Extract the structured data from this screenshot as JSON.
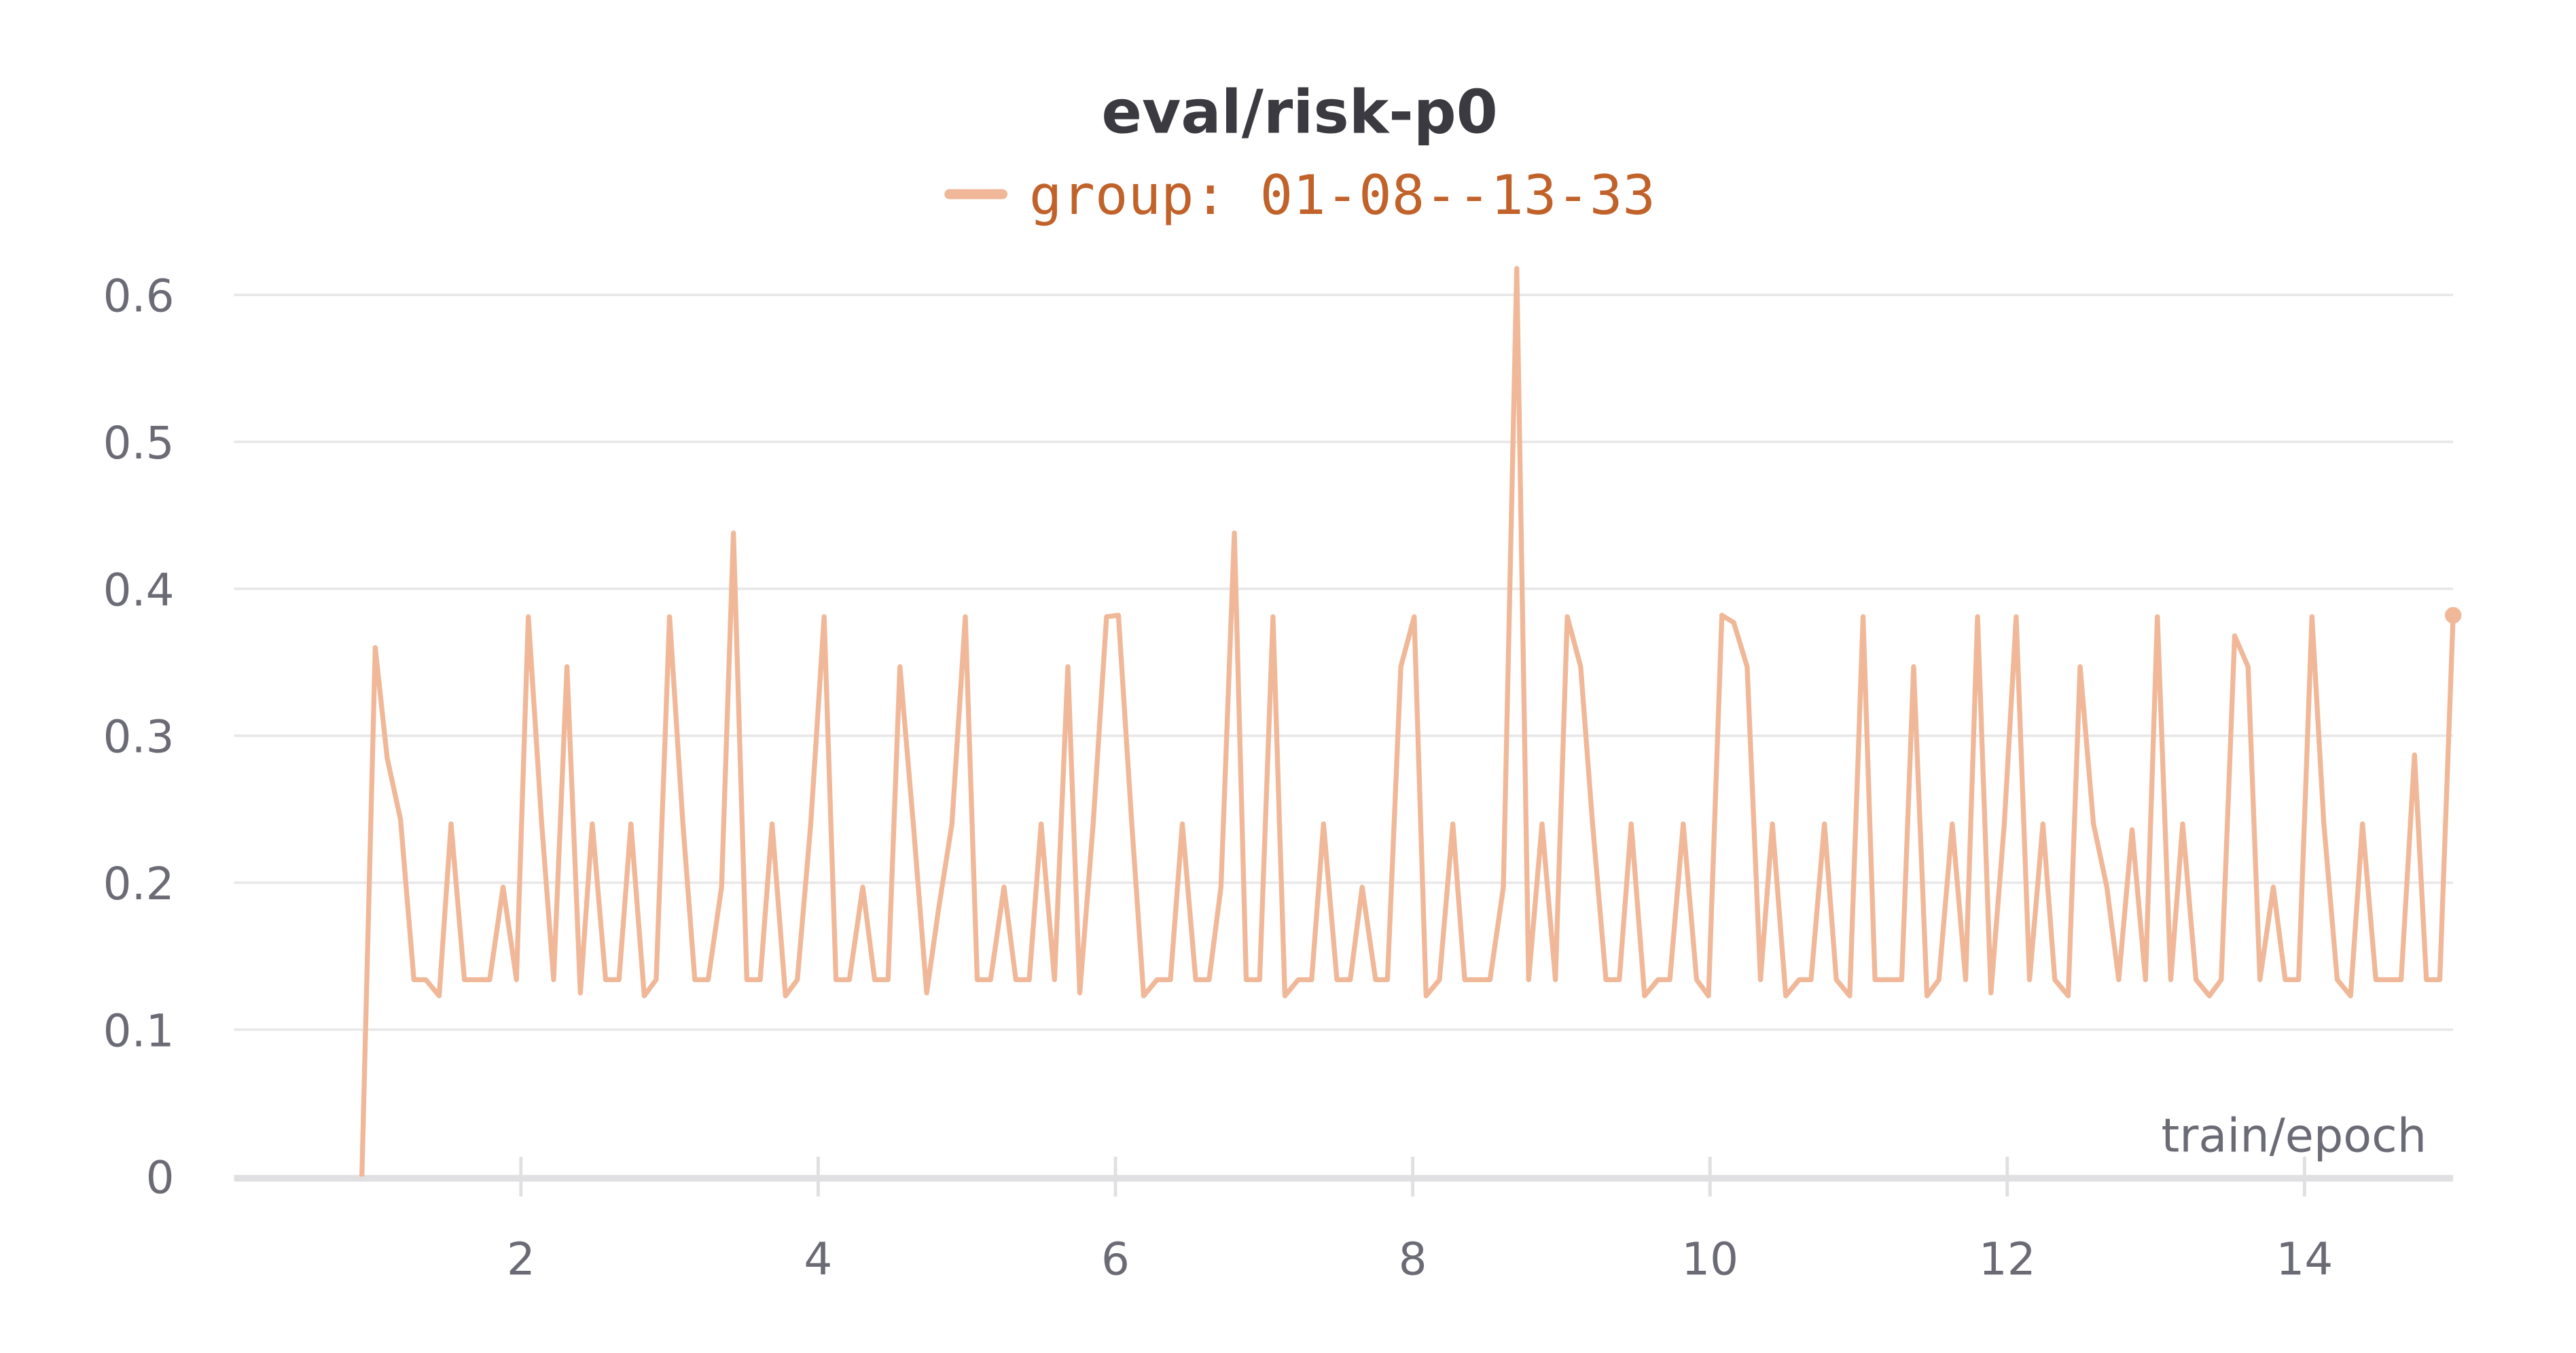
{
  "chart_data": {
    "type": "line",
    "title": "eval/risk-p0",
    "xlabel": "train/epoch",
    "x": [
      0.93,
      1.02,
      1.1,
      1.19,
      1.28,
      1.36,
      1.45,
      1.53,
      1.62,
      1.71,
      1.79,
      1.88,
      1.97,
      2.05,
      2.14,
      2.22,
      2.31,
      2.4,
      2.48,
      2.57,
      2.66,
      2.74,
      2.83,
      2.91,
      3.0,
      3.09,
      3.17,
      3.26,
      3.35,
      3.43,
      3.52,
      3.61,
      3.69,
      3.78,
      3.86,
      3.95,
      4.04,
      4.12,
      4.21,
      4.3,
      4.38,
      4.47,
      4.55,
      4.64,
      4.73,
      4.81,
      4.9,
      4.99,
      5.07,
      5.16,
      5.25,
      5.33,
      5.42,
      5.5,
      5.59,
      5.68,
      5.76,
      5.85,
      5.94,
      6.02,
      6.11,
      6.19,
      6.28,
      6.37,
      6.45,
      6.54,
      6.63,
      6.71,
      6.8,
      6.88,
      6.97,
      7.06,
      7.14,
      7.23,
      7.32,
      7.4,
      7.49,
      7.58,
      7.66,
      7.75,
      7.83,
      7.92,
      8.01,
      8.09,
      8.18,
      8.27,
      8.35,
      8.44,
      8.52,
      8.61,
      8.7,
      8.78,
      8.87,
      8.96,
      9.04,
      9.13,
      9.21,
      9.3,
      9.39,
      9.47,
      9.56,
      9.65,
      9.73,
      9.82,
      9.91,
      9.99,
      10.08,
      10.16,
      10.25,
      10.34,
      10.42,
      10.51,
      10.6,
      10.68,
      10.77,
      10.85,
      10.94,
      11.03,
      11.11,
      11.2,
      11.29,
      11.37,
      11.46,
      11.54,
      11.63,
      11.72,
      11.8,
      11.89,
      11.98,
      12.06,
      12.15,
      12.24,
      12.32,
      12.41,
      12.49,
      12.58,
      12.67,
      12.75,
      12.84,
      12.93,
      13.01,
      13.1,
      13.18,
      13.27,
      13.36,
      13.44,
      13.53,
      13.62,
      13.7,
      13.79,
      13.87,
      13.96,
      14.05,
      14.13,
      14.22,
      14.31,
      14.39,
      14.48,
      14.56,
      14.65,
      14.74,
      14.82,
      14.91,
      15.0
    ],
    "series": [
      {
        "name": "group: 01-08--13-33",
        "color": "#f0b898",
        "values": [
          0,
          0.36,
          0.285,
          0.243,
          0.134,
          0.134,
          0.123,
          0.24,
          0.134,
          0.134,
          0.134,
          0.197,
          0.134,
          0.381,
          0.24,
          0.134,
          0.347,
          0.125,
          0.24,
          0.134,
          0.134,
          0.24,
          0.123,
          0.134,
          0.381,
          0.24,
          0.134,
          0.134,
          0.197,
          0.438,
          0.134,
          0.134,
          0.24,
          0.123,
          0.134,
          0.24,
          0.381,
          0.134,
          0.134,
          0.197,
          0.134,
          0.134,
          0.347,
          0.24,
          0.125,
          0.182,
          0.24,
          0.381,
          0.134,
          0.134,
          0.197,
          0.134,
          0.134,
          0.24,
          0.134,
          0.347,
          0.125,
          0.24,
          0.381,
          0.382,
          0.24,
          0.123,
          0.134,
          0.134,
          0.24,
          0.134,
          0.134,
          0.197,
          0.438,
          0.134,
          0.134,
          0.381,
          0.123,
          0.134,
          0.134,
          0.24,
          0.134,
          0.134,
          0.197,
          0.134,
          0.134,
          0.347,
          0.381,
          0.123,
          0.134,
          0.24,
          0.134,
          0.134,
          0.134,
          0.197,
          0.618,
          0.134,
          0.24,
          0.134,
          0.381,
          0.347,
          0.24,
          0.134,
          0.134,
          0.24,
          0.123,
          0.134,
          0.134,
          0.24,
          0.134,
          0.123,
          0.382,
          0.377,
          0.347,
          0.134,
          0.24,
          0.123,
          0.134,
          0.134,
          0.24,
          0.134,
          0.123,
          0.381,
          0.134,
          0.134,
          0.134,
          0.347,
          0.123,
          0.134,
          0.24,
          0.134,
          0.381,
          0.125,
          0.24,
          0.381,
          0.134,
          0.24,
          0.134,
          0.123,
          0.347,
          0.24,
          0.197,
          0.134,
          0.236,
          0.134,
          0.381,
          0.134,
          0.24,
          0.134,
          0.123,
          0.134,
          0.368,
          0.347,
          0.134,
          0.197,
          0.134,
          0.134,
          0.381,
          0.24,
          0.134,
          0.123,
          0.24,
          0.134,
          0.134,
          0.134,
          0.287,
          0.134,
          0.134,
          0.382
        ]
      }
    ],
    "xlim": [
      0.07,
      15.0
    ],
    "ylim": [
      0,
      0.62
    ],
    "xticks": [
      2,
      4,
      6,
      8,
      10,
      12,
      14
    ],
    "yticks": [
      0,
      0.1,
      0.2,
      0.3,
      0.4,
      0.5,
      0.6
    ],
    "grid": true
  }
}
